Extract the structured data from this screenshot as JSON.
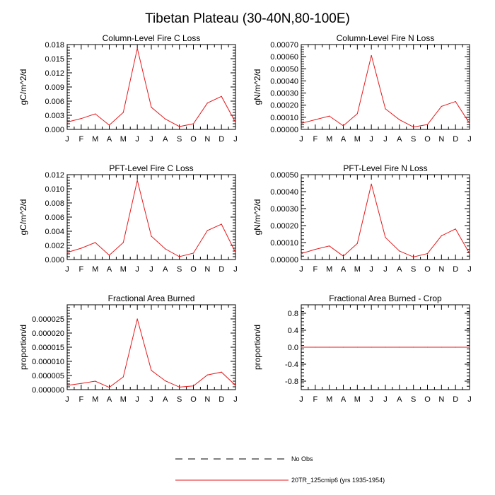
{
  "figure_title": "Tibetan Plateau (30-40N,80-100E)",
  "legend": [
    {
      "label": "No Obs",
      "style": "dashed",
      "color": "#000000"
    },
    {
      "label": "20TR_125cmip6 (yrs 1935-1954)",
      "style": "solid",
      "color": "#e41a1c"
    }
  ],
  "chart_data": [
    {
      "type": "line",
      "title": "Column-Level Fire C Loss",
      "ylabel": "gC/m^2/d",
      "categories": [
        "J",
        "F",
        "M",
        "A",
        "M",
        "J",
        "J",
        "A",
        "S",
        "O",
        "N",
        "D",
        "J"
      ],
      "yticks": [
        "0.000",
        "0.003",
        "0.006",
        "0.009",
        "0.012",
        "0.015",
        "0.018"
      ],
      "ylim": [
        0,
        0.018
      ],
      "series": [
        {
          "values": [
            0.00155,
            0.0023,
            0.0033,
            0.0009,
            0.0036,
            0.0172,
            0.0047,
            0.0022,
            0.0006,
            0.0012,
            0.0056,
            0.007,
            0.0015
          ]
        }
      ]
    },
    {
      "type": "line",
      "title": "Column-Level Fire N Loss",
      "ylabel": "gN/m^2/d",
      "categories": [
        "J",
        "F",
        "M",
        "A",
        "M",
        "J",
        "J",
        "A",
        "S",
        "O",
        "N",
        "D",
        "J"
      ],
      "yticks": [
        "0.00000",
        "0.00010",
        "0.00020",
        "0.00030",
        "0.00040",
        "0.00050",
        "0.00060",
        "0.00070"
      ],
      "ylim": [
        0,
        0.0007
      ],
      "series": [
        {
          "values": [
            5e-05,
            8e-05,
            0.00011,
            3e-05,
            0.00013,
            0.00061,
            0.00017,
            8e-05,
            2e-05,
            4e-05,
            0.00019,
            0.00023,
            5e-05
          ]
        }
      ]
    },
    {
      "type": "line",
      "title": "PFT-Level Fire C Loss",
      "ylabel": "gC/m^2/d",
      "categories": [
        "J",
        "F",
        "M",
        "A",
        "M",
        "J",
        "J",
        "A",
        "S",
        "O",
        "N",
        "D",
        "J"
      ],
      "yticks": [
        "0.000",
        "0.002",
        "0.004",
        "0.006",
        "0.008",
        "0.010",
        "0.012"
      ],
      "ylim": [
        0,
        0.012
      ],
      "series": [
        {
          "values": [
            0.001,
            0.0016,
            0.0024,
            0.0006,
            0.0024,
            0.0112,
            0.0033,
            0.0015,
            0.0004,
            0.0009,
            0.0041,
            0.005,
            0.001
          ]
        }
      ]
    },
    {
      "type": "line",
      "title": "PFT-Level Fire N Loss",
      "ylabel": "gN/m^2/d",
      "categories": [
        "J",
        "F",
        "M",
        "A",
        "M",
        "J",
        "J",
        "A",
        "S",
        "O",
        "N",
        "D",
        "J"
      ],
      "yticks": [
        "0.00000",
        "0.00010",
        "0.00020",
        "0.00030",
        "0.00040",
        "0.00050"
      ],
      "ylim": [
        0,
        0.0005
      ],
      "series": [
        {
          "values": [
            3.5e-05,
            6e-05,
            8e-05,
            2e-05,
            9.5e-05,
            0.000445,
            0.00013,
            5e-05,
            1.5e-05,
            3.5e-05,
            0.00014,
            0.00018,
            3.5e-05
          ]
        }
      ]
    },
    {
      "type": "line",
      "title": "Fractional Area Burned",
      "ylabel": "proportion/d",
      "categories": [
        "J",
        "F",
        "M",
        "A",
        "M",
        "J",
        "J",
        "A",
        "S",
        "O",
        "N",
        "D",
        "J"
      ],
      "yticks": [
        "0.000000",
        "0.000005",
        "0.000010",
        "0.000015",
        "0.000020",
        "0.000025"
      ],
      "ylim": [
        0,
        3e-05
      ],
      "series": [
        {
          "values": [
            1.5e-06,
            2.2e-06,
            3e-06,
            8e-07,
            4.5e-06,
            2.5e-05,
            6.8e-06,
            3.1e-06,
            9e-07,
            1.3e-06,
            5.2e-06,
            6.2e-06,
            1.5e-06
          ]
        }
      ]
    },
    {
      "type": "line",
      "title": "Fractional Area Burned - Crop",
      "ylabel": "proportion/d",
      "categories": [
        "J",
        "F",
        "M",
        "A",
        "M",
        "J",
        "J",
        "A",
        "S",
        "O",
        "N",
        "D",
        "J"
      ],
      "yticks": [
        "-0.8",
        "-0.4",
        "0.0",
        "0.4",
        "0.8"
      ],
      "ylim": [
        -1.0,
        1.0
      ],
      "series": [
        {
          "values": [
            0,
            0,
            0,
            0,
            0,
            0,
            0,
            0,
            0,
            0,
            0,
            0,
            0
          ]
        }
      ]
    }
  ]
}
